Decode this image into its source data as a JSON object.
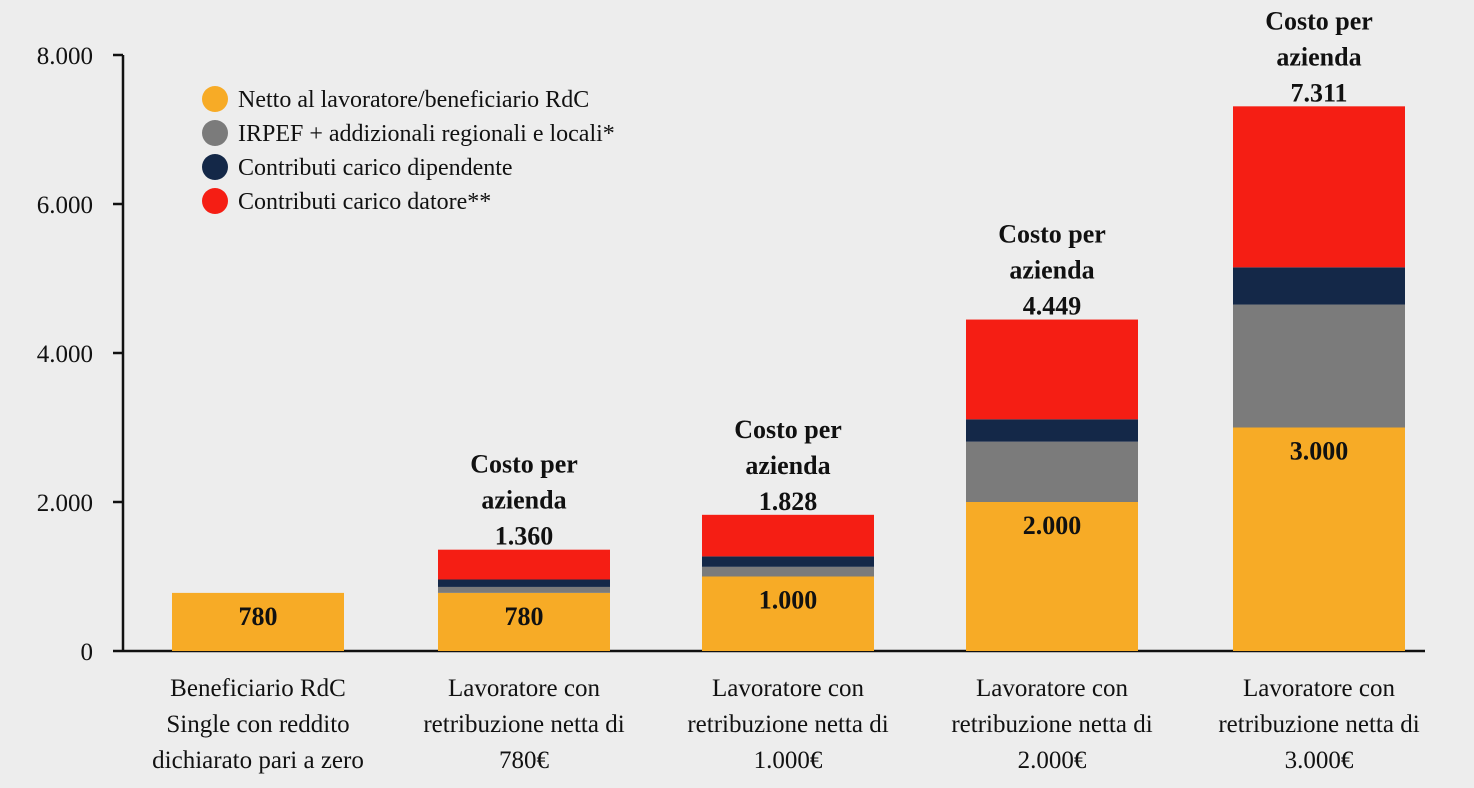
{
  "chart_data": {
    "type": "bar",
    "stacked": true,
    "title": "",
    "xlabel": "",
    "ylabel": "",
    "ylim": [
      0,
      8000
    ],
    "yticks": [
      {
        "value": 0,
        "label": "0"
      },
      {
        "value": 2000,
        "label": "2.000"
      },
      {
        "value": 4000,
        "label": "4.000"
      },
      {
        "value": 6000,
        "label": "6.000"
      },
      {
        "value": 8000,
        "label": "8.000"
      }
    ],
    "grid": false,
    "legend_position": "top-left",
    "categories": [
      [
        "Beneficiario RdC",
        "Single con reddito",
        "dichiarato pari a zero"
      ],
      [
        "Lavoratore con",
        "retribuzione netta di",
        "780€"
      ],
      [
        "Lavoratore con",
        "retribuzione netta di",
        "1.000€"
      ],
      [
        "Lavoratore con",
        "retribuzione netta di",
        "2.000€"
      ],
      [
        "Lavoratore con",
        "retribuzione netta di",
        "3.000€"
      ]
    ],
    "series": [
      {
        "name": "Netto al lavoratore/beneficiario RdC",
        "color": "#f7ab26",
        "values": [
          780,
          780,
          1000,
          2000,
          3000
        ]
      },
      {
        "name": "IRPEF + addizionali regionali e locali*",
        "color": "#7b7b7b",
        "values": [
          0,
          80,
          130,
          810,
          1650
        ]
      },
      {
        "name": "Contributi carico dipendente",
        "color": "#142848",
        "values": [
          0,
          100,
          140,
          300,
          500
        ]
      },
      {
        "name": "Contributi carico datore**",
        "color": "#f51e14",
        "values": [
          0,
          400,
          558,
          1339,
          2161
        ]
      }
    ],
    "bar_value_labels": [
      "780",
      "780",
      "1.000",
      "2.000",
      "3.000"
    ],
    "annotations": [
      null,
      [
        "Costo per",
        "azienda",
        "1.360"
      ],
      [
        "Costo per",
        "azienda",
        "1.828"
      ],
      [
        "Costo per",
        "azienda",
        "4.449"
      ],
      [
        "Costo per",
        "azienda",
        "7.311"
      ]
    ],
    "totals": [
      780,
      1360,
      1828,
      4449,
      7311
    ]
  }
}
